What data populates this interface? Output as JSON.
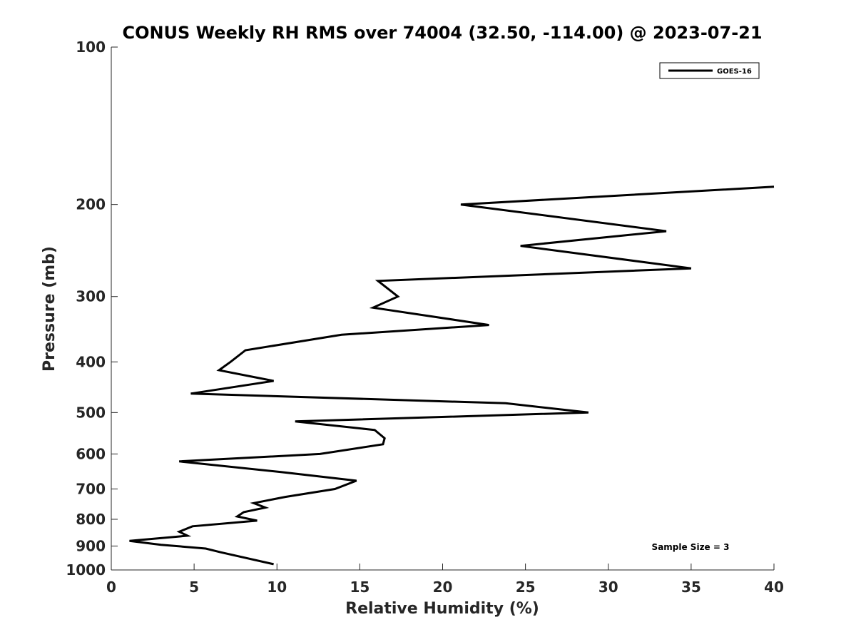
{
  "chart_data": {
    "type": "line",
    "title": "CONUS Weekly RH RMS over 74004 (32.50, -114.00) @ 2023-07-21",
    "xlabel": "Relative Humidity (%)",
    "ylabel": "Pressure (mb)",
    "xlim": [
      0,
      40
    ],
    "ylim": [
      1000,
      100
    ],
    "yscale": "log",
    "y_inverted": true,
    "grid": false,
    "legend_position": "top-right",
    "x_ticks": [
      0,
      5,
      10,
      15,
      20,
      25,
      30,
      35,
      40
    ],
    "x_tick_labels": [
      "0",
      "5",
      "10",
      "15",
      "20",
      "25",
      "30",
      "35",
      "40"
    ],
    "y_ticks": [
      100,
      200,
      300,
      400,
      500,
      600,
      700,
      800,
      900,
      1000
    ],
    "y_tick_labels": [
      "100",
      "200",
      "300",
      "400",
      "500",
      "600",
      "700",
      "800",
      "900",
      "1000"
    ],
    "series": [
      {
        "name": "GOES-16",
        "color": "#000000",
        "points": [
          {
            "x": 9.8,
            "y": 975
          },
          {
            "x": 6.6,
            "y": 925
          },
          {
            "x": 5.7,
            "y": 910
          },
          {
            "x": 3.0,
            "y": 895
          },
          {
            "x": 1.1,
            "y": 880
          },
          {
            "x": 4.6,
            "y": 860
          },
          {
            "x": 4.1,
            "y": 845
          },
          {
            "x": 4.9,
            "y": 825
          },
          {
            "x": 8.8,
            "y": 805
          },
          {
            "x": 7.6,
            "y": 790
          },
          {
            "x": 8.0,
            "y": 775
          },
          {
            "x": 9.3,
            "y": 760
          },
          {
            "x": 8.6,
            "y": 745
          },
          {
            "x": 10.5,
            "y": 725
          },
          {
            "x": 13.5,
            "y": 700
          },
          {
            "x": 14.8,
            "y": 675
          },
          {
            "x": 10.3,
            "y": 650
          },
          {
            "x": 4.1,
            "y": 620
          },
          {
            "x": 12.6,
            "y": 600
          },
          {
            "x": 16.4,
            "y": 575
          },
          {
            "x": 16.5,
            "y": 560
          },
          {
            "x": 15.9,
            "y": 540
          },
          {
            "x": 11.1,
            "y": 520
          },
          {
            "x": 28.8,
            "y": 500
          },
          {
            "x": 23.8,
            "y": 480
          },
          {
            "x": 4.8,
            "y": 460
          },
          {
            "x": 9.8,
            "y": 435
          },
          {
            "x": 6.5,
            "y": 415
          },
          {
            "x": 7.2,
            "y": 400
          },
          {
            "x": 8.1,
            "y": 380
          },
          {
            "x": 13.9,
            "y": 355
          },
          {
            "x": 22.8,
            "y": 340
          },
          {
            "x": 15.8,
            "y": 315
          },
          {
            "x": 17.3,
            "y": 300
          },
          {
            "x": 16.1,
            "y": 280
          },
          {
            "x": 35.0,
            "y": 265
          },
          {
            "x": 24.7,
            "y": 240
          },
          {
            "x": 33.5,
            "y": 225
          },
          {
            "x": 21.1,
            "y": 200
          },
          {
            "x": 40.0,
            "y": 185
          }
        ]
      }
    ],
    "annotations": [
      "Sample Size = 3"
    ]
  }
}
